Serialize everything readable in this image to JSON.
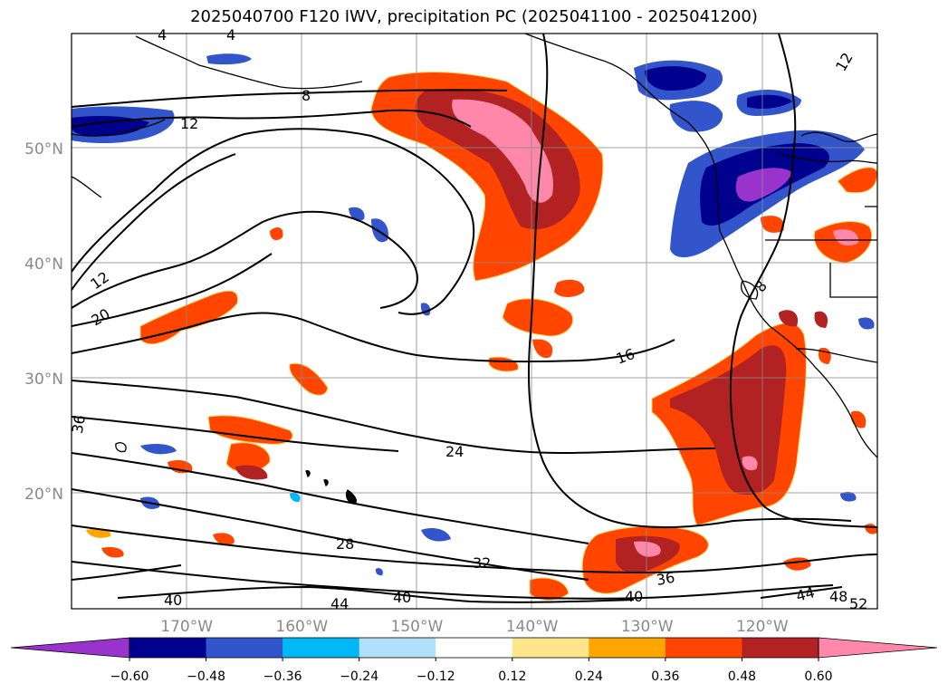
{
  "chart_data": {
    "type": "heatmap",
    "title": "2025040700 F120 IWV, precipitation PC (2025041100 - 2025041200)",
    "projection": "map",
    "x_axis": {
      "ticks": [
        {
          "lon": -170,
          "label": "170°W"
        },
        {
          "lon": -160,
          "label": "160°W"
        },
        {
          "lon": -150,
          "label": "150°W"
        },
        {
          "lon": -140,
          "label": "140°W"
        },
        {
          "lon": -130,
          "label": "130°W"
        },
        {
          "lon": -120,
          "label": "120°W"
        }
      ],
      "range": [
        -180,
        -110
      ]
    },
    "y_axis": {
      "ticks": [
        {
          "lat": 50,
          "label": "50°N"
        },
        {
          "lat": 40,
          "label": "40°N"
        },
        {
          "lat": 30,
          "label": "30°N"
        },
        {
          "lat": 20,
          "label": "20°N"
        }
      ],
      "range": [
        10,
        60
      ]
    },
    "grid": true,
    "colorbar": {
      "bounds": [
        -0.6,
        -0.48,
        -0.36,
        -0.24,
        -0.12,
        0.12,
        0.24,
        0.36,
        0.48,
        0.6
      ],
      "tick_labels": [
        "−0.60",
        "−0.48",
        "−0.36",
        "−0.24",
        "−0.12",
        "0.12",
        "0.24",
        "0.36",
        "0.48",
        "0.60"
      ],
      "colors": [
        "#9a33cc",
        "#00008f",
        "#3355cc",
        "#00b8f5",
        "#b0e0fa",
        "#ffffff",
        "#fde68a",
        "#ffa500",
        "#ff4500",
        "#b22222",
        "#ff88aa"
      ],
      "extend": "both"
    },
    "contour_labels": [
      "4",
      "4",
      "8",
      "12",
      "12",
      "12",
      "20",
      "16",
      "24",
      "36",
      "28",
      "32",
      "36",
      "40",
      "40",
      "40",
      "44",
      "44",
      "48",
      "52",
      "8"
    ]
  }
}
